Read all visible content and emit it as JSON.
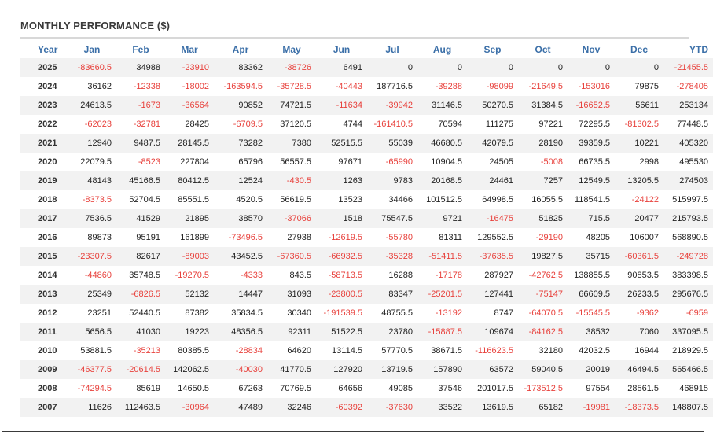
{
  "title": "MONTHLY PERFORMANCE ($)",
  "columns": [
    "Year",
    "Jan",
    "Feb",
    "Mar",
    "Apr",
    "May",
    "Jun",
    "Jul",
    "Aug",
    "Sep",
    "Oct",
    "Nov",
    "Dec",
    "YTD"
  ],
  "negative_color": "#e8413c",
  "header_color": "#3b6fa8",
  "rows": [
    [
      "2025",
      "-83660.5",
      "34988",
      "-23910",
      "83362",
      "-38726",
      "6491",
      "0",
      "0",
      "0",
      "0",
      "0",
      "0",
      "-21455.5"
    ],
    [
      "2024",
      "36162",
      "-12338",
      "-18002",
      "-163594.5",
      "-35728.5",
      "-40443",
      "187716.5",
      "-39288",
      "-98099",
      "-21649.5",
      "-153016",
      "79875",
      "-278405"
    ],
    [
      "2023",
      "24613.5",
      "-1673",
      "-36564",
      "90852",
      "74721.5",
      "-11634",
      "-39942",
      "31146.5",
      "50270.5",
      "31384.5",
      "-16652.5",
      "56611",
      "253134"
    ],
    [
      "2022",
      "-62023",
      "-32781",
      "28425",
      "-6709.5",
      "37120.5",
      "4744",
      "-161410.5",
      "70594",
      "111275",
      "97221",
      "72295.5",
      "-81302.5",
      "77448.5"
    ],
    [
      "2021",
      "12940",
      "9487.5",
      "28145.5",
      "73282",
      "7380",
      "52515.5",
      "55039",
      "46680.5",
      "42079.5",
      "28190",
      "39359.5",
      "10221",
      "405320"
    ],
    [
      "2020",
      "22079.5",
      "-8523",
      "227804",
      "65796",
      "56557.5",
      "97671",
      "-65990",
      "10904.5",
      "24505",
      "-5008",
      "66735.5",
      "2998",
      "495530"
    ],
    [
      "2019",
      "48143",
      "45166.5",
      "80412.5",
      "12524",
      "-430.5",
      "1263",
      "9783",
      "20168.5",
      "24461",
      "7257",
      "12549.5",
      "13205.5",
      "274503"
    ],
    [
      "2018",
      "-8373.5",
      "52704.5",
      "85551.5",
      "4520.5",
      "56619.5",
      "13523",
      "34466",
      "101512.5",
      "64998.5",
      "16055.5",
      "118541.5",
      "-24122",
      "515997.5"
    ],
    [
      "2017",
      "7536.5",
      "41529",
      "21895",
      "38570",
      "-37066",
      "1518",
      "75547.5",
      "9721",
      "-16475",
      "51825",
      "715.5",
      "20477",
      "215793.5"
    ],
    [
      "2016",
      "89873",
      "95191",
      "161899",
      "-73496.5",
      "27938",
      "-12619.5",
      "-55780",
      "81311",
      "129552.5",
      "-29190",
      "48205",
      "106007",
      "568890.5"
    ],
    [
      "2015",
      "-23307.5",
      "82617",
      "-89003",
      "43452.5",
      "-67360.5",
      "-66932.5",
      "-35328",
      "-51411.5",
      "-37635.5",
      "19827.5",
      "35715",
      "-60361.5",
      "-249728"
    ],
    [
      "2014",
      "-44860",
      "35748.5",
      "-19270.5",
      "-4333",
      "843.5",
      "-58713.5",
      "16288",
      "-17178",
      "287927",
      "-42762.5",
      "138855.5",
      "90853.5",
      "383398.5"
    ],
    [
      "2013",
      "25349",
      "-6826.5",
      "52132",
      "14447",
      "31093",
      "-23800.5",
      "83347",
      "-25201.5",
      "127441",
      "-75147",
      "66609.5",
      "26233.5",
      "295676.5"
    ],
    [
      "2012",
      "23251",
      "52440.5",
      "87382",
      "35834.5",
      "30340",
      "-191539.5",
      "48755.5",
      "-13192",
      "8747",
      "-64070.5",
      "-15545.5",
      "-9362",
      "-6959"
    ],
    [
      "2011",
      "5656.5",
      "41030",
      "19223",
      "48356.5",
      "92311",
      "51522.5",
      "23780",
      "-15887.5",
      "109674",
      "-84162.5",
      "38532",
      "7060",
      "337095.5"
    ],
    [
      "2010",
      "53881.5",
      "-35213",
      "80385.5",
      "-28834",
      "64620",
      "13114.5",
      "57770.5",
      "38671.5",
      "-116623.5",
      "32180",
      "42032.5",
      "16944",
      "218929.5"
    ],
    [
      "2009",
      "-46377.5",
      "-20614.5",
      "142062.5",
      "-40030",
      "41770.5",
      "127920",
      "13719.5",
      "157890",
      "63572",
      "59040.5",
      "20019",
      "46494.5",
      "565466.5"
    ],
    [
      "2008",
      "-74294.5",
      "85619",
      "14650.5",
      "67263",
      "70769.5",
      "64656",
      "49085",
      "37546",
      "201017.5",
      "-173512.5",
      "97554",
      "28561.5",
      "468915"
    ],
    [
      "2007",
      "11626",
      "112463.5",
      "-30964",
      "47489",
      "32246",
      "-60392",
      "-37630",
      "33522",
      "13619.5",
      "65182",
      "-19981",
      "-18373.5",
      "148807.5"
    ]
  ]
}
